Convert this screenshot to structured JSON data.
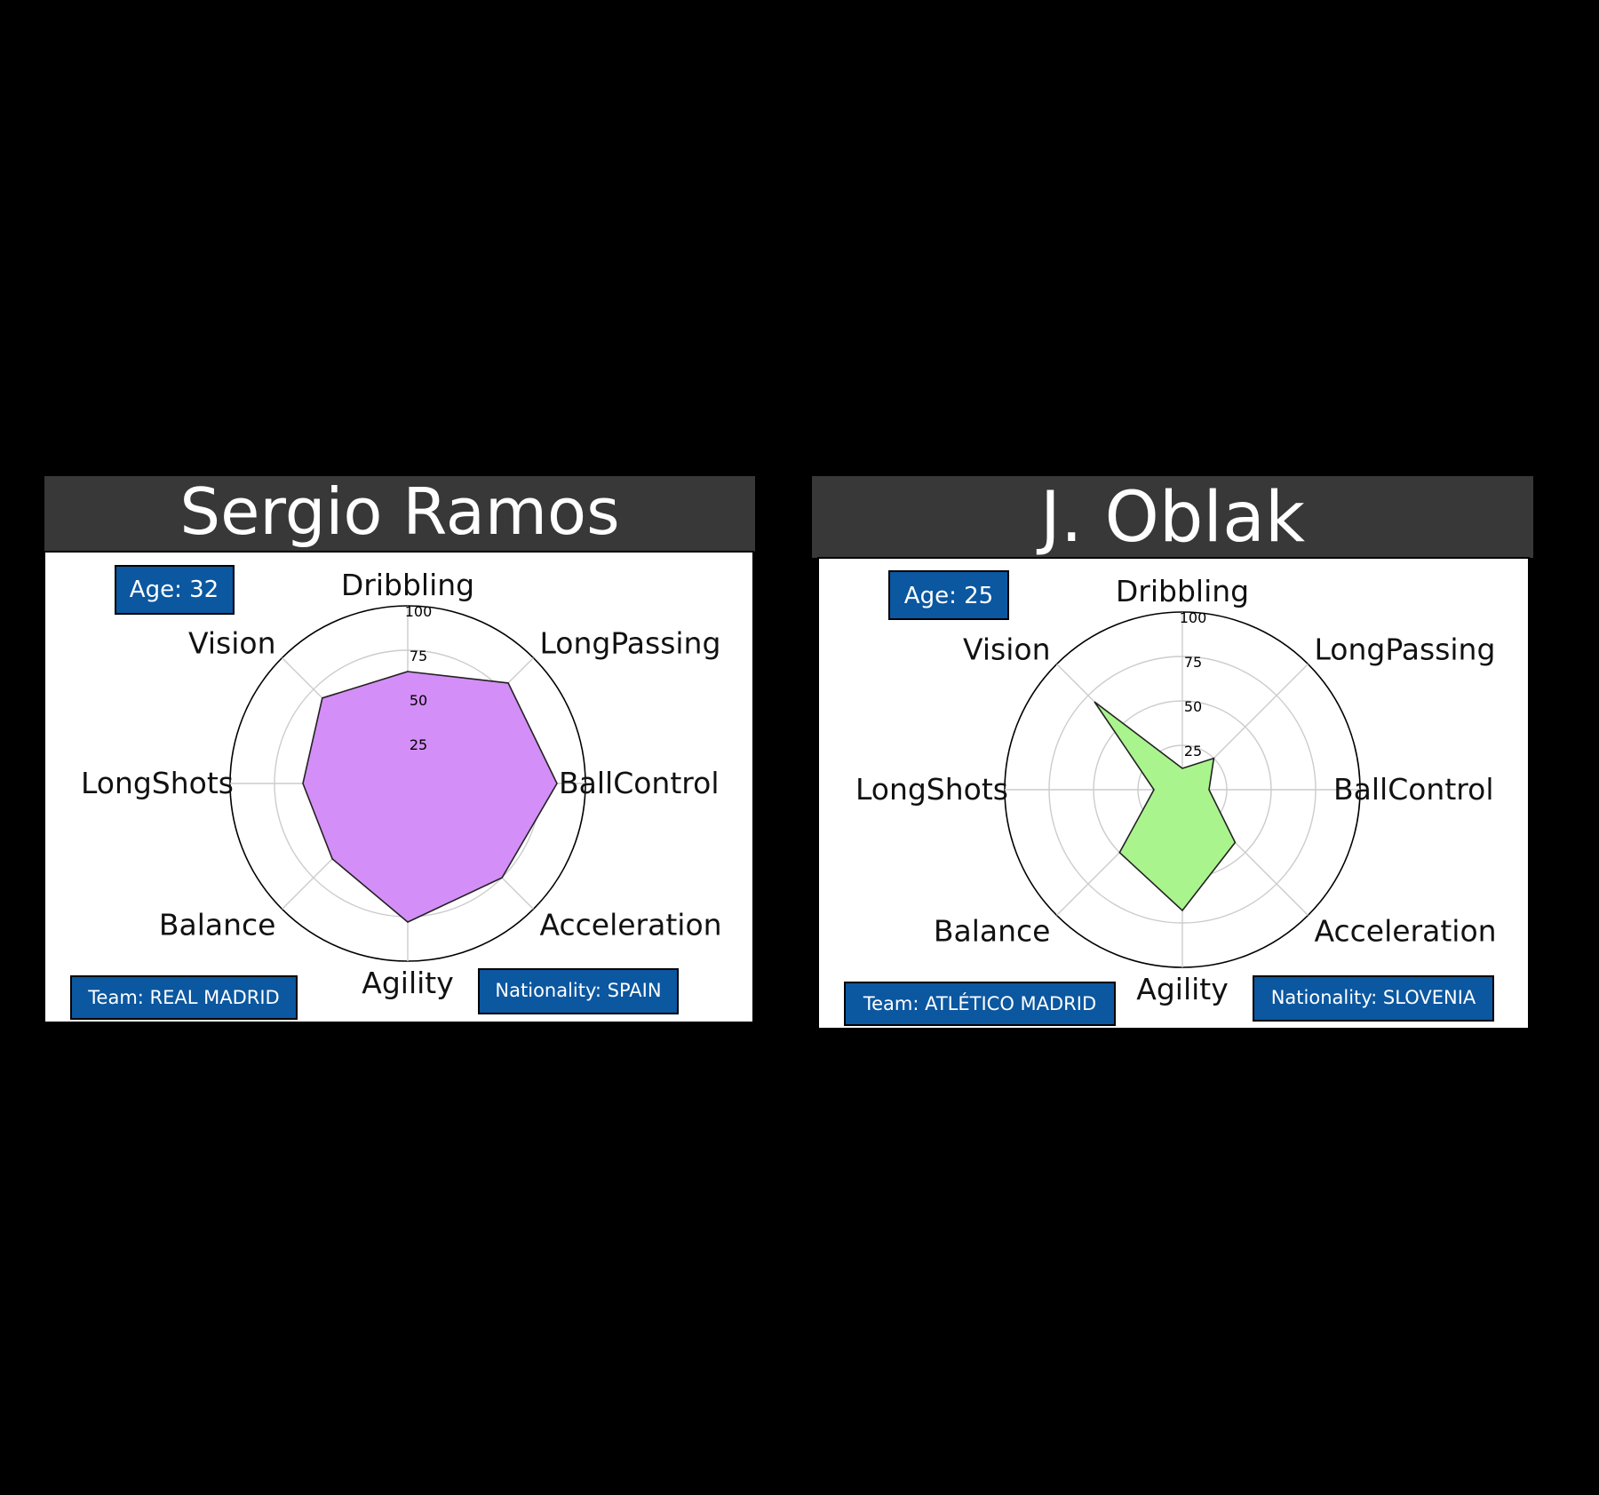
{
  "chart_data": [
    {
      "type": "radar",
      "title": "Sergio Ramos",
      "axes": [
        "Dribbling",
        "LongPassing",
        "BallControl",
        "Acceleration",
        "Agility",
        "Balance",
        "LongShots",
        "Vision"
      ],
      "values": [
        63,
        80,
        84,
        75,
        78,
        60,
        59,
        68
      ],
      "rlim": [
        0,
        100
      ],
      "rticks": [
        25,
        50,
        75,
        100
      ],
      "fill_color": "#d48ef7",
      "badges": {
        "age": "Age: 32",
        "team": "Team: REAL MADRID",
        "nationality": "Nationality: SPAIN"
      }
    },
    {
      "type": "radar",
      "title": "J. Oblak",
      "axes": [
        "Dribbling",
        "LongPassing",
        "BallControl",
        "Acceleration",
        "Agility",
        "Balance",
        "LongShots",
        "Vision"
      ],
      "values": [
        12,
        25,
        15,
        42,
        68,
        50,
        16,
        70
      ],
      "rlim": [
        0,
        100
      ],
      "rticks": [
        25,
        50,
        75,
        100
      ],
      "fill_color": "#aaf48e",
      "badges": {
        "age": "Age: 25",
        "team": "Team: ATLÉTICO MADRID",
        "nationality": "Nationality: SLOVENIA"
      }
    }
  ],
  "colors": {
    "background": "#000000",
    "title_bar": "#383838",
    "badge": "#0b57a0",
    "grid": "#cccccc"
  }
}
